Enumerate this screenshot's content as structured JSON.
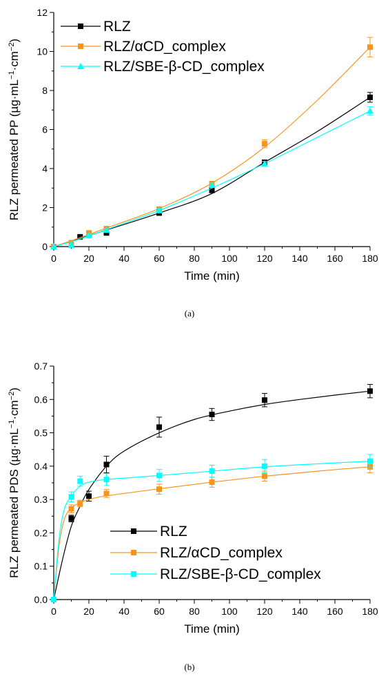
{
  "panels": [
    {
      "caption": "(a)",
      "chart_data": {
        "type": "line",
        "xlabel": "Time (min)",
        "ylabel_parts": [
          "RLZ permeated PP (",
          "µg·mL",
          "−1",
          "·cm",
          "−2",
          ")"
        ],
        "xlim": [
          0,
          180
        ],
        "ylim": [
          0,
          12
        ],
        "xticks": [
          0,
          20,
          40,
          60,
          80,
          100,
          120,
          140,
          160,
          180
        ],
        "yticks": [
          0,
          2,
          4,
          6,
          8,
          10,
          12
        ],
        "legend_position": "top-left",
        "grid": false,
        "series": [
          {
            "name": "RLZ",
            "color": "#000000",
            "marker": "square",
            "x": [
              0,
              15,
              20,
              30,
              60,
              90,
              120,
              180
            ],
            "y": [
              0,
              0.5,
              0.58,
              0.7,
              1.72,
              2.88,
              4.32,
              7.65
            ],
            "err": [
              0,
              0.04,
              0.05,
              0.05,
              0.08,
              0.1,
              0.12,
              0.25
            ],
            "fit": [
              [
                0,
                0
              ],
              [
                15,
                0.42
              ],
              [
                30,
                0.85
              ],
              [
                60,
                1.72
              ],
              [
                90,
                2.72
              ],
              [
                120,
                4.32
              ],
              [
                150,
                5.9
              ],
              [
                180,
                7.65
              ]
            ]
          },
          {
            "name": "RLZ/αCD_complex",
            "color": "#F7941D",
            "marker": "square",
            "x": [
              0,
              10,
              20,
              30,
              60,
              90,
              120,
              180
            ],
            "y": [
              0,
              0.2,
              0.7,
              0.92,
              1.92,
              3.22,
              5.27,
              10.22
            ],
            "err": [
              0,
              0.03,
              0.06,
              0.08,
              0.1,
              0.12,
              0.2,
              0.5
            ],
            "fit": [
              [
                0,
                0
              ],
              [
                10,
                0.3
              ],
              [
                20,
                0.62
              ],
              [
                30,
                0.95
              ],
              [
                60,
                1.95
              ],
              [
                90,
                3.25
              ],
              [
                120,
                5.1
              ],
              [
                150,
                7.5
              ],
              [
                180,
                10.22
              ]
            ]
          },
          {
            "name": "RLZ/SBE-β-CD_complex",
            "color": "#00FFFF",
            "marker": "triangle",
            "x": [
              0,
              10,
              20,
              30,
              60,
              90,
              120,
              180
            ],
            "y": [
              0,
              0.08,
              0.58,
              0.85,
              1.85,
              3.15,
              4.25,
              6.95
            ],
            "err": [
              0,
              0.03,
              0.05,
              0.06,
              0.08,
              0.1,
              0.12,
              0.22
            ],
            "fit": [
              [
                0,
                0
              ],
              [
                10,
                0.25
              ],
              [
                20,
                0.55
              ],
              [
                30,
                0.87
              ],
              [
                60,
                1.85
              ],
              [
                90,
                3.0
              ],
              [
                120,
                4.25
              ],
              [
                150,
                5.6
              ],
              [
                180,
                6.95
              ]
            ]
          }
        ]
      }
    },
    {
      "caption": "(b)",
      "chart_data": {
        "type": "line",
        "xlabel": "Time (min)",
        "ylabel_parts": [
          "RLZ permeated PDS (",
          "µg·mL",
          "−1",
          "·cm",
          "−2",
          ")"
        ],
        "xlim": [
          0,
          180
        ],
        "ylim": [
          0,
          0.7
        ],
        "xticks": [
          0,
          20,
          40,
          60,
          80,
          100,
          120,
          140,
          160,
          180
        ],
        "yticks": [
          0.0,
          0.1,
          0.2,
          0.3,
          0.4,
          0.5,
          0.6,
          0.7
        ],
        "ytick_labels": [
          "0.0",
          "0.1",
          "0.2",
          "0.3",
          "0.4",
          "0.5",
          "0.6",
          "0.7"
        ],
        "legend_position": "bottom-center",
        "grid": false,
        "series": [
          {
            "name": "RLZ",
            "color": "#000000",
            "marker": "square",
            "x": [
              0,
              10,
              20,
              30,
              60,
              90,
              120,
              180
            ],
            "y": [
              0,
              0.243,
              0.31,
              0.405,
              0.517,
              0.555,
              0.598,
              0.625
            ],
            "err": [
              0,
              0.01,
              0.015,
              0.025,
              0.03,
              0.018,
              0.02,
              0.02
            ],
            "fit": [
              [
                0,
                0
              ],
              [
                5,
                0.12
              ],
              [
                10,
                0.22
              ],
              [
                15,
                0.28
              ],
              [
                20,
                0.33
              ],
              [
                30,
                0.4
              ],
              [
                40,
                0.445
              ],
              [
                60,
                0.5
              ],
              [
                80,
                0.54
              ],
              [
                100,
                0.565
              ],
              [
                120,
                0.585
              ],
              [
                140,
                0.6
              ],
              [
                160,
                0.613
              ],
              [
                180,
                0.625
              ]
            ]
          },
          {
            "name": "RLZ/αCD_complex",
            "color": "#F7941D",
            "marker": "square",
            "x": [
              0,
              10,
              15,
              30,
              60,
              90,
              120,
              180
            ],
            "y": [
              0,
              0.272,
              0.288,
              0.318,
              0.331,
              0.352,
              0.37,
              0.398
            ],
            "err": [
              0,
              0.012,
              0.01,
              0.012,
              0.015,
              0.015,
              0.015,
              0.018
            ],
            "fit": [
              [
                0,
                0
              ],
              [
                3,
                0.16
              ],
              [
                6,
                0.24
              ],
              [
                10,
                0.275
              ],
              [
                15,
                0.29
              ],
              [
                20,
                0.3
              ],
              [
                30,
                0.311
              ],
              [
                60,
                0.332
              ],
              [
                90,
                0.352
              ],
              [
                120,
                0.37
              ],
              [
                150,
                0.385
              ],
              [
                180,
                0.398
              ]
            ]
          },
          {
            "name": "RLZ/SBE-β-CD_complex",
            "color": "#00FFFF",
            "marker": "square",
            "x": [
              0,
              10,
              15,
              30,
              60,
              90,
              120,
              180
            ],
            "y": [
              0,
              0.308,
              0.355,
              0.36,
              0.372,
              0.385,
              0.4,
              0.415
            ],
            "err": [
              0,
              0.015,
              0.015,
              0.018,
              0.018,
              0.018,
              0.02,
              0.02
            ],
            "fit": [
              [
                0,
                0
              ],
              [
                3,
                0.18
              ],
              [
                6,
                0.27
              ],
              [
                10,
                0.31
              ],
              [
                15,
                0.34
              ],
              [
                20,
                0.352
              ],
              [
                30,
                0.36
              ],
              [
                60,
                0.372
              ],
              [
                90,
                0.385
              ],
              [
                120,
                0.398
              ],
              [
                150,
                0.407
              ],
              [
                180,
                0.415
              ]
            ]
          }
        ]
      }
    }
  ]
}
